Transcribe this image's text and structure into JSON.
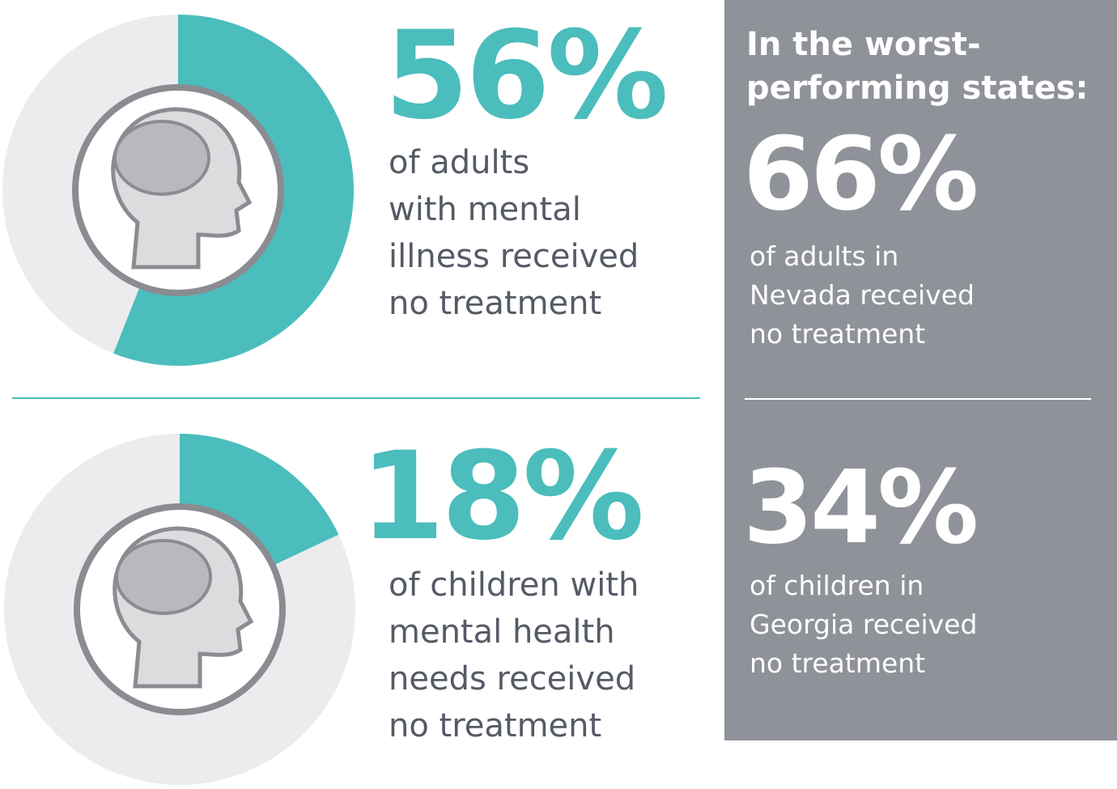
{
  "chart_data": [
    {
      "type": "donut",
      "values": [
        56
      ],
      "value_labels": [
        "56%"
      ],
      "color": "#4bbdbc",
      "track_color": "#ececee",
      "description": [
        "of adults",
        "with mental",
        "illness received",
        "no treatment"
      ]
    },
    {
      "type": "donut",
      "values": [
        18
      ],
      "value_labels": [
        "18%"
      ],
      "color": "#4bbdbc",
      "track_color": "#ececee",
      "description": [
        "of children with",
        "mental health",
        "needs received",
        "no treatment"
      ]
    }
  ],
  "panel": {
    "title": [
      "In the worst-",
      "performing states:"
    ],
    "items": [
      {
        "value_label": "66%",
        "description": [
          "of adults in",
          "Nevada received",
          "no treatment"
        ]
      },
      {
        "value_label": "34%",
        "description": [
          "of children in",
          "Georgia received",
          "no treatment"
        ]
      }
    ]
  }
}
